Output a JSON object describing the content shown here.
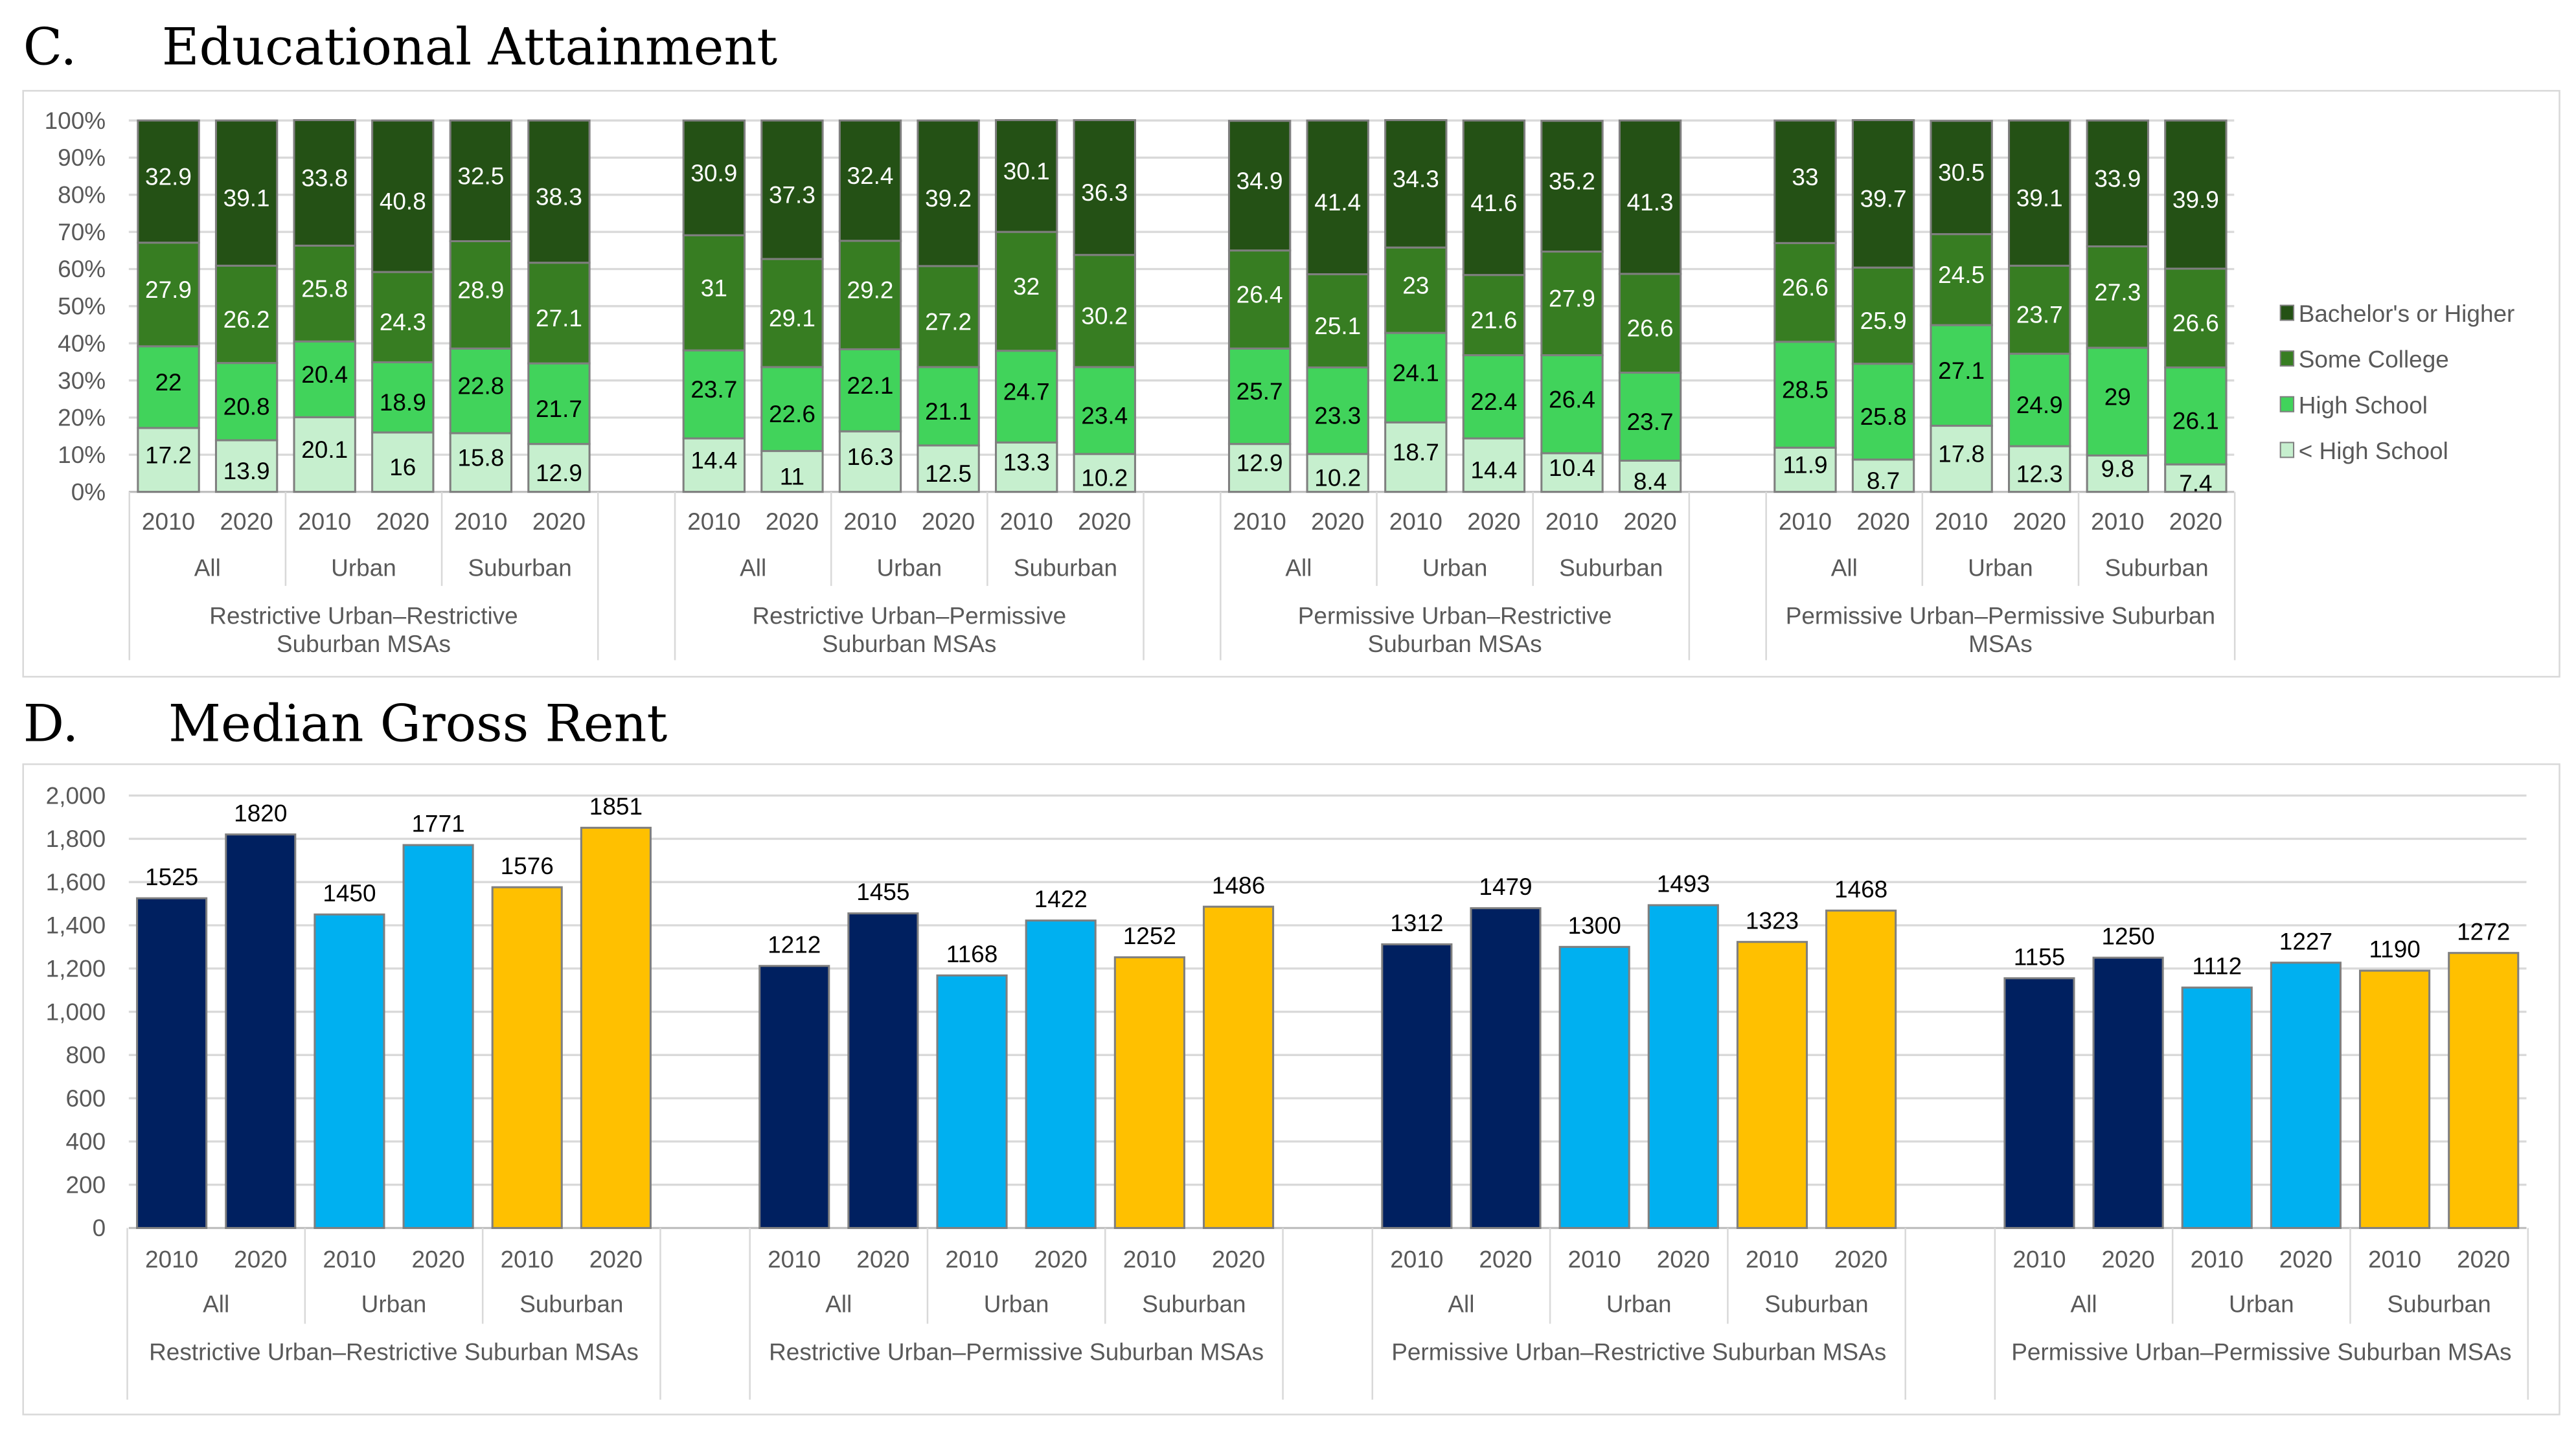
{
  "chart_data": [
    {
      "type": "bar",
      "stacked": true,
      "panel": "C.",
      "title": "Educational Attainment",
      "yticks": [
        "0%",
        "10%",
        "20%",
        "30%",
        "40%",
        "50%",
        "60%",
        "70%",
        "80%",
        "90%",
        "100%"
      ],
      "ylim": [
        0,
        100
      ],
      "legend_position": "right",
      "groups": [
        "Restrictive Urban–Restrictive Suburban MSAs",
        "Restrictive Urban–Permissive Suburban MSAs",
        "Permissive Urban–Restrictive Suburban MSAs",
        "Permissive Urban–Permissive Suburban MSAs"
      ],
      "subgroups": [
        "All",
        "Urban",
        "Suburban"
      ],
      "years": [
        "2010",
        "2020"
      ],
      "series": [
        {
          "name": "< High School",
          "color": "#C6EFCE",
          "label_color": "#000000",
          "values": [
            17.2,
            13.9,
            20.1,
            16.0,
            15.8,
            12.9,
            14.4,
            11.0,
            16.3,
            12.5,
            13.3,
            10.2,
            12.9,
            10.2,
            18.7,
            14.4,
            10.4,
            8.4,
            11.9,
            8.7,
            17.8,
            12.3,
            9.8,
            7.4
          ]
        },
        {
          "name": "High School",
          "color": "#41D35B",
          "label_color": "#000000",
          "values": [
            22.0,
            20.8,
            20.4,
            18.9,
            22.8,
            21.7,
            23.7,
            22.6,
            22.1,
            21.1,
            24.7,
            23.4,
            25.7,
            23.3,
            24.1,
            22.4,
            26.4,
            23.7,
            28.5,
            25.8,
            27.1,
            24.9,
            29.0,
            26.1
          ]
        },
        {
          "name": "Some College",
          "color": "#377D22",
          "label_color": "#FFFFFF",
          "values": [
            27.9,
            26.2,
            25.8,
            24.3,
            28.9,
            27.1,
            31.0,
            29.1,
            29.2,
            27.2,
            32.0,
            30.2,
            26.4,
            25.1,
            23.0,
            21.6,
            27.9,
            26.6,
            26.6,
            25.9,
            24.5,
            23.7,
            27.3,
            26.6
          ]
        },
        {
          "name": "Bachelor's or Higher",
          "color": "#245115",
          "label_color": "#FFFFFF",
          "values": [
            32.9,
            39.1,
            33.8,
            40.8,
            32.5,
            38.3,
            30.9,
            37.3,
            32.4,
            39.2,
            30.1,
            36.3,
            34.9,
            41.4,
            34.3,
            41.6,
            35.2,
            41.3,
            33.0,
            39.7,
            30.5,
            39.1,
            33.9,
            39.9
          ]
        }
      ]
    },
    {
      "type": "bar",
      "panel": "D.",
      "title": "Median Gross Rent",
      "yticks": [
        "0",
        "200",
        "400",
        "600",
        "800",
        "1,000",
        "1,200",
        "1,400",
        "1,600",
        "1,800",
        "2,000"
      ],
      "ylim": [
        0,
        2000
      ],
      "groups": [
        "Restrictive Urban–Restrictive Suburban MSAs",
        "Restrictive Urban–Permissive Suburban MSAs",
        "Permissive Urban–Restrictive Suburban MSAs",
        "Permissive Urban–Permissive Suburban MSAs"
      ],
      "subgroups": [
        "All",
        "Urban",
        "Suburban"
      ],
      "subgroup_colors": [
        "#002060",
        "#00B0F0",
        "#FFC000"
      ],
      "years": [
        "2010",
        "2020"
      ],
      "values": [
        1525,
        1820,
        1450,
        1771,
        1576,
        1851,
        1212,
        1455,
        1168,
        1422,
        1252,
        1486,
        1312,
        1479,
        1300,
        1493,
        1323,
        1468,
        1155,
        1250,
        1112,
        1227,
        1190,
        1272
      ]
    }
  ]
}
